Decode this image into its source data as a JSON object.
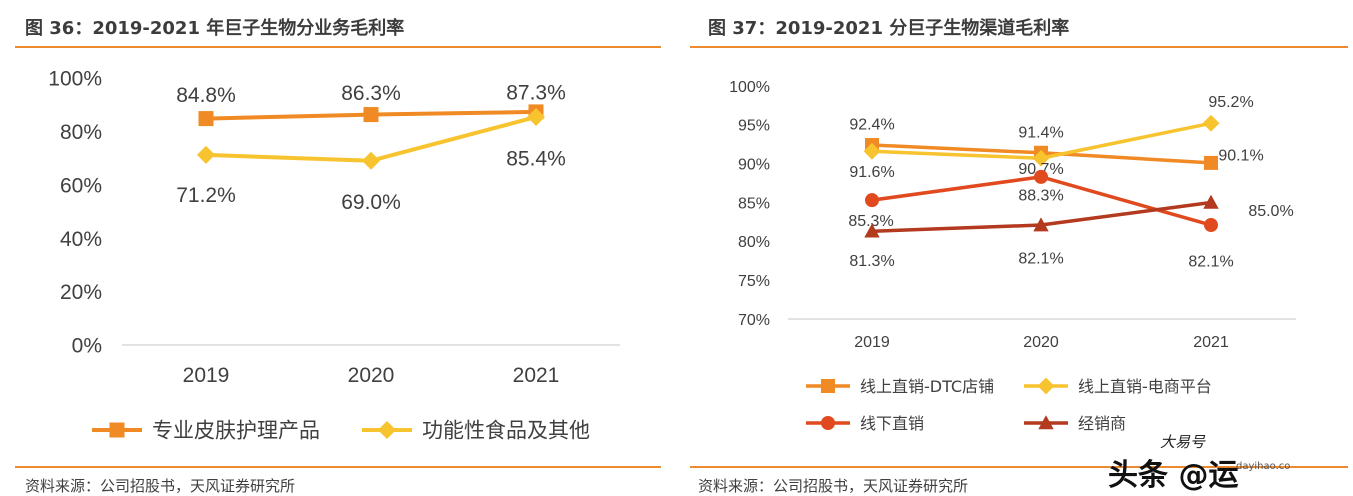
{
  "left": {
    "title": "图 36：2019-2021 年巨子生物分业务毛利率",
    "source": "资料来源：公司招股书，天风证券研究所",
    "colors": {
      "rule": "#ec8a2f"
    }
  },
  "right": {
    "title": "图 37：2019-2021 分巨子生物渠道毛利率",
    "source": "资料来源：公司招股书，天风证券研究所"
  },
  "watermark": {
    "text": "头条 @运",
    "overlay": "大易号",
    "url": "dayihao.co"
  },
  "chart_data": [
    {
      "type": "line",
      "categories": [
        "2019",
        "2020",
        "2021"
      ],
      "ylim": [
        0,
        100
      ],
      "yticks": [
        "0%",
        "20%",
        "40%",
        "60%",
        "80%",
        "100%"
      ],
      "grid": false,
      "legend_position": "bottom",
      "series": [
        {
          "name": "专业皮肤护理产品",
          "values": [
            84.8,
            86.3,
            87.3
          ],
          "labels": [
            "84.8%",
            "86.3%",
            "87.3%"
          ],
          "color": "#f08a24",
          "marker": "square"
        },
        {
          "name": "功能性食品及其他",
          "values": [
            71.2,
            69.0,
            85.4
          ],
          "labels": [
            "71.2%",
            "69.0%",
            "85.4%"
          ],
          "color": "#f7c32e",
          "marker": "diamond"
        }
      ]
    },
    {
      "type": "line",
      "categories": [
        "2019",
        "2020",
        "2021"
      ],
      "ylim": [
        70,
        100
      ],
      "yticks": [
        "70%",
        "75%",
        "80%",
        "85%",
        "90%",
        "95%",
        "100%"
      ],
      "grid": false,
      "legend_position": "bottom",
      "series": [
        {
          "name": "线上直销-DTC店铺",
          "values": [
            92.4,
            91.4,
            90.1
          ],
          "labels": [
            "92.4%",
            "91.4%",
            "90.1%"
          ],
          "color": "#f08a24",
          "marker": "square"
        },
        {
          "name": "线上直销-电商平台",
          "values": [
            91.6,
            90.7,
            95.2
          ],
          "labels": [
            "91.6%",
            "90.7%",
            "95.2%"
          ],
          "color": "#f7c32e",
          "marker": "diamond"
        },
        {
          "name": "线下直销",
          "values": [
            85.3,
            88.3,
            82.1
          ],
          "labels": [
            "85.3%",
            "88.3%",
            "82.1%"
          ],
          "color": "#e04a1e",
          "marker": "circle"
        },
        {
          "name": "经销商",
          "values": [
            81.3,
            82.1,
            85.0
          ],
          "labels": [
            "81.3%",
            "82.1%",
            "85.0%"
          ],
          "color": "#b3391f",
          "marker": "triangle"
        }
      ]
    }
  ]
}
